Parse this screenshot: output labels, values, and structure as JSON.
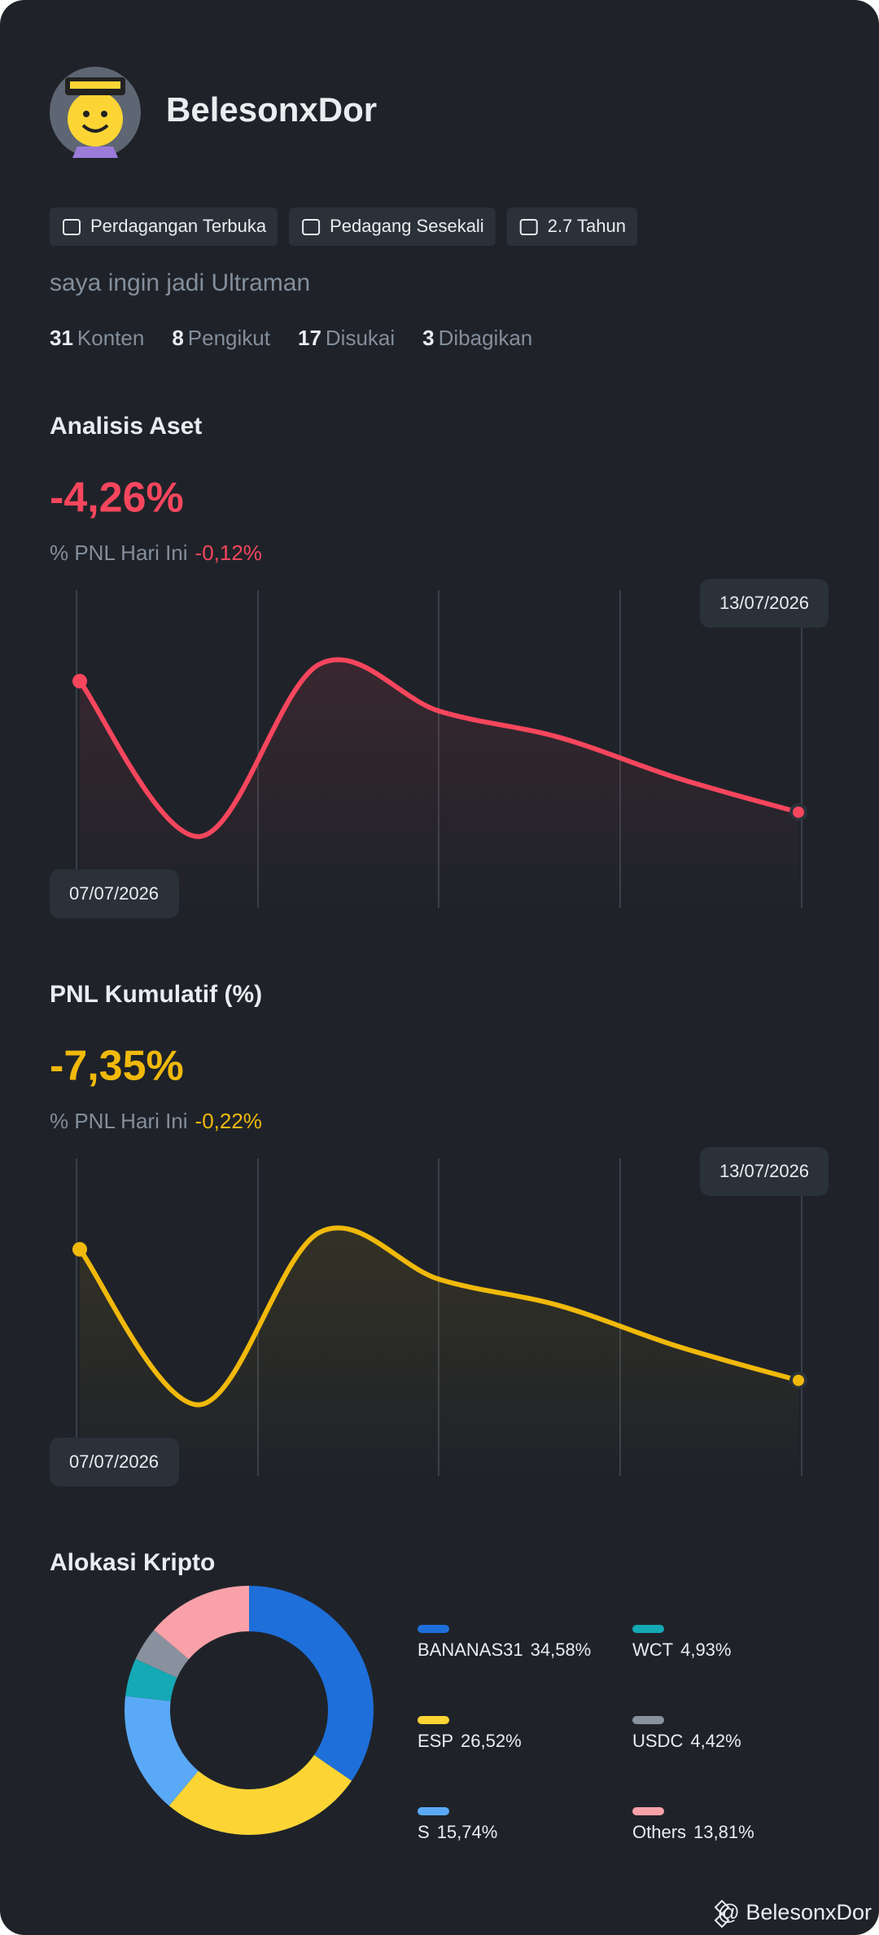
{
  "profile": {
    "name": "BelesonxDor",
    "badges": [
      "Perdagangan Terbuka",
      "Pedagang Sesekali",
      "2.7 Tahun"
    ],
    "bio": "saya ingin jadi Ultraman",
    "stats": [
      {
        "count": "31",
        "label": "Konten"
      },
      {
        "count": "8",
        "label": "Pengikut"
      },
      {
        "count": "17",
        "label": "Disukai"
      },
      {
        "count": "3",
        "label": "Dibagikan"
      }
    ]
  },
  "asset": {
    "title": "Analisis Aset",
    "value": "-4,26%",
    "today_label": "% PNL Hari Ini",
    "today_value": "-0,12%",
    "start_date": "07/07/2026",
    "end_date": "13/07/2026",
    "color": "#f6465d",
    "values": [
      121,
      38,
      130,
      105,
      91,
      69,
      51
    ]
  },
  "pnl": {
    "title": "PNL Kumulatif (%)",
    "value": "-7,35%",
    "today_label": "% PNL Hari Ini",
    "today_value": "-0,22%",
    "start_date": "07/07/2026",
    "end_date": "13/07/2026",
    "color": "#f0b90b",
    "values": [
      121,
      38,
      130,
      105,
      91,
      69,
      51
    ]
  },
  "chart_data": {
    "type": "pie",
    "title": "Alokasi Kripto",
    "categories": [
      "BANANAS31",
      "ESP",
      "S",
      "WCT",
      "USDC",
      "Others"
    ],
    "values": [
      34.58,
      26.52,
      15.74,
      4.93,
      4.42,
      13.81
    ],
    "value_labels": [
      "34,58%",
      "26,52%",
      "15,74%",
      "4,93%",
      "4,42%",
      "13,81%"
    ],
    "colors": [
      "#1e6fd9",
      "#fcd535",
      "#5aa9f6",
      "#14a9b5",
      "#8a919e",
      "#f8a1a8"
    ]
  },
  "footer": "@ BelesonxDor"
}
